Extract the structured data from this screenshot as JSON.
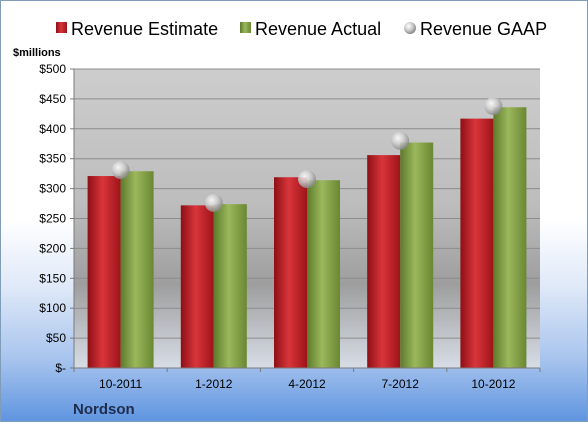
{
  "chart_data": {
    "type": "bar",
    "title": "",
    "company": "Nordson",
    "ylabel": "$millions",
    "ylim": [
      0,
      500
    ],
    "yticks": [
      {
        "value": 0,
        "label": "$-"
      },
      {
        "value": 50,
        "label": "$50"
      },
      {
        "value": 100,
        "label": "$100"
      },
      {
        "value": 150,
        "label": "$150"
      },
      {
        "value": 200,
        "label": "$200"
      },
      {
        "value": 250,
        "label": "$250"
      },
      {
        "value": 300,
        "label": "$300"
      },
      {
        "value": 350,
        "label": "$350"
      },
      {
        "value": 400,
        "label": "$400"
      },
      {
        "value": 450,
        "label": "$450"
      },
      {
        "value": 500,
        "label": "$500"
      }
    ],
    "categories": [
      "10-2011",
      "1-2012",
      "4-2012",
      "7-2012",
      "10-2012"
    ],
    "series": [
      {
        "name": "Revenue Estimate",
        "kind": "bar",
        "color": "#c0272d",
        "values": [
          321,
          272,
          319,
          356,
          417
        ]
      },
      {
        "name": "Revenue Actual",
        "kind": "bar",
        "color": "#86a24a",
        "values": [
          329,
          274,
          314,
          377,
          436
        ]
      },
      {
        "name": "Revenue GAAP",
        "kind": "marker",
        "color": "#b9b9b9",
        "values": [
          331,
          276,
          316,
          380,
          438
        ]
      }
    ],
    "grid": true,
    "legend": "top"
  }
}
